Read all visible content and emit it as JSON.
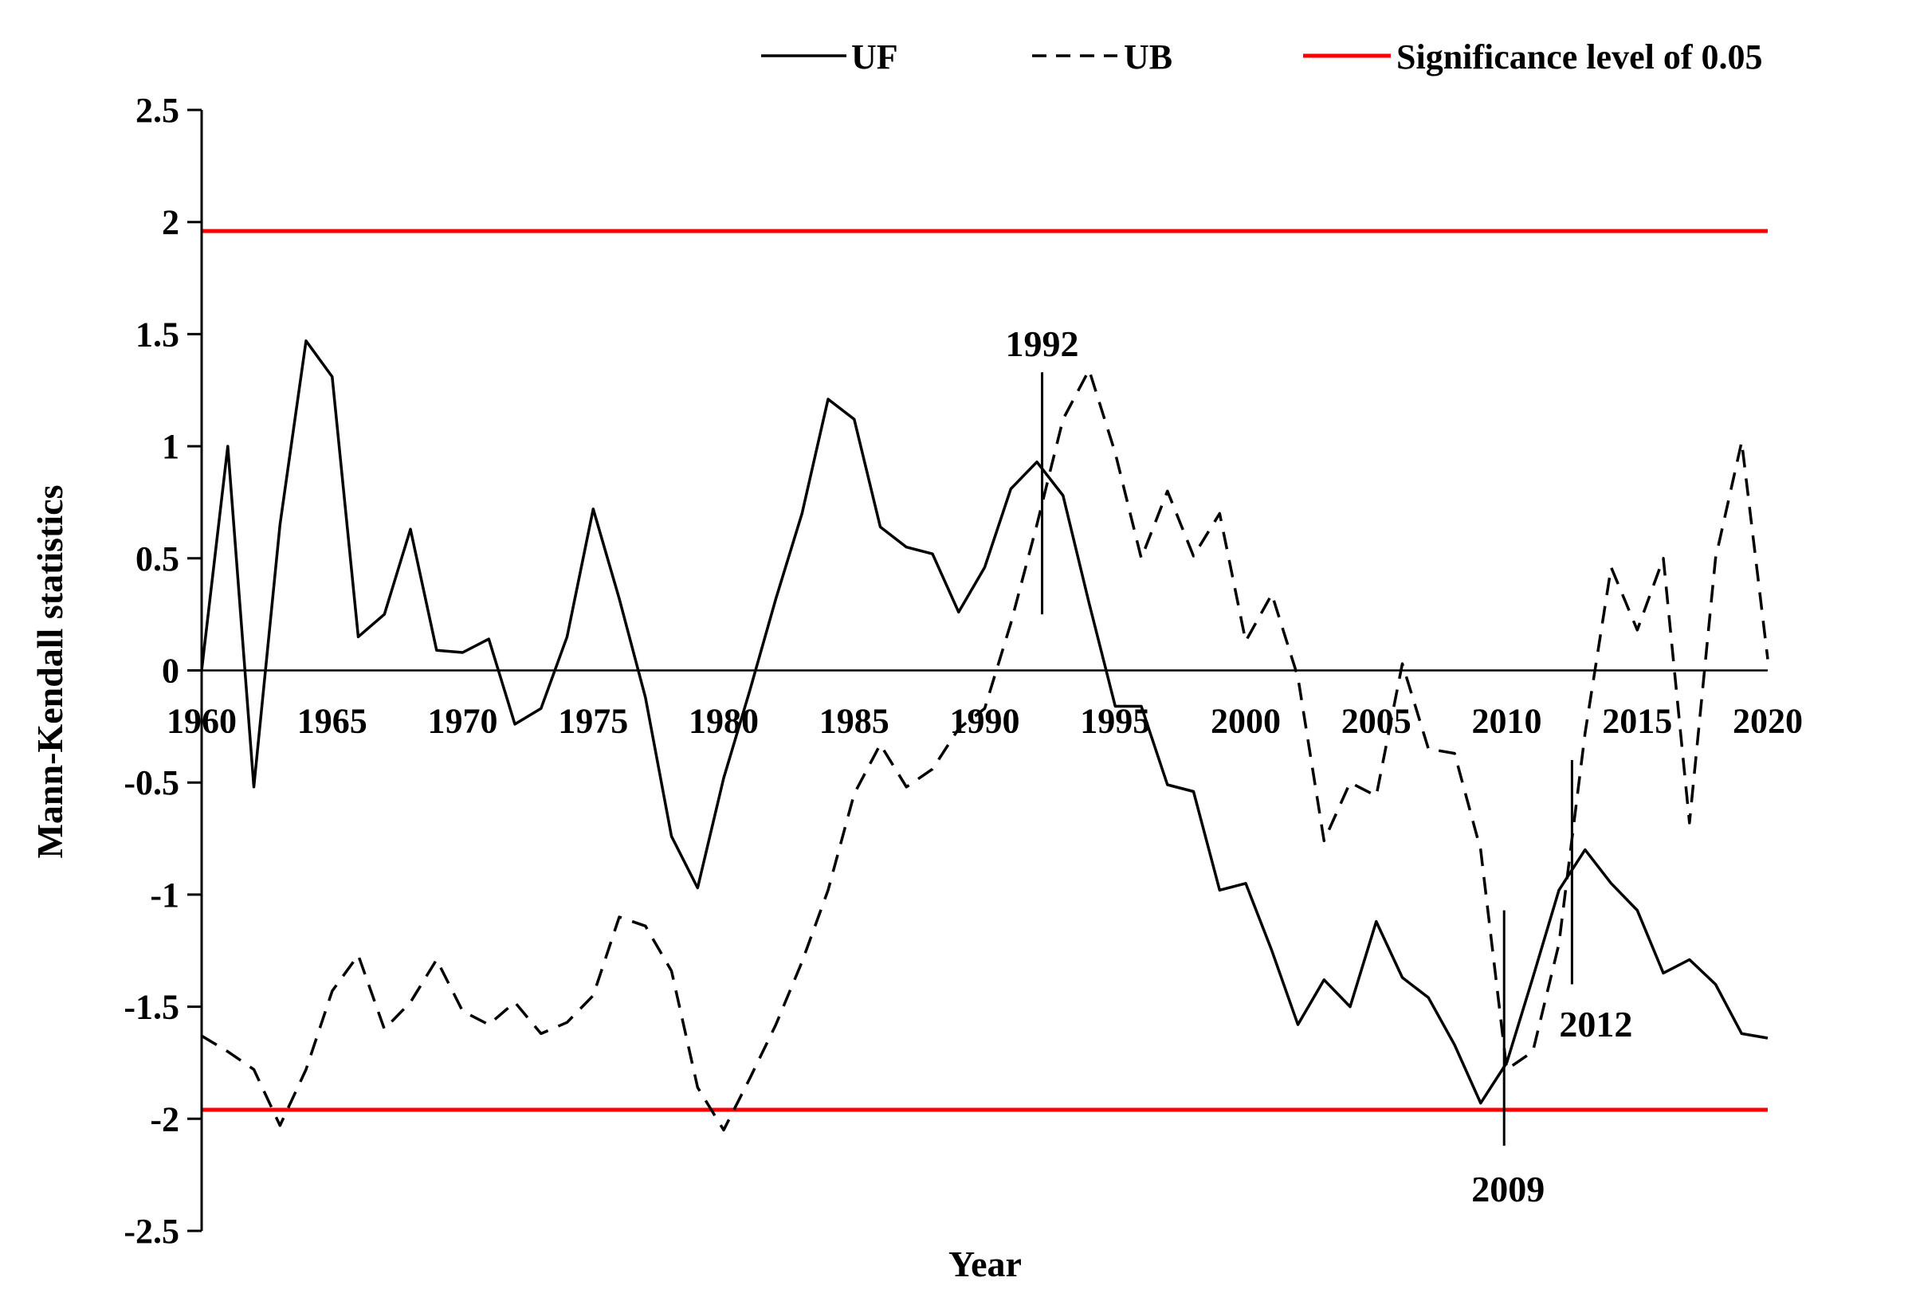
{
  "chart_data": {
    "type": "line",
    "title": "",
    "xlabel": "Year",
    "ylabel": "Mann-Kendall statistics",
    "xlim": [
      1960,
      2020
    ],
    "ylim": [
      -2.5,
      2.5
    ],
    "x_ticks": [
      "1960",
      "1965",
      "1970",
      "1975",
      "1980",
      "1985",
      "1990",
      "1995",
      "2000",
      "2005",
      "2010",
      "2015",
      "2020"
    ],
    "y_ticks": [
      "2.5",
      "2",
      "1.5",
      "1",
      "0.5",
      "0",
      "-0.5",
      "-1",
      "-1.5",
      "-2",
      "-2.5"
    ],
    "y_tick_values": [
      2.5,
      2,
      1.5,
      1,
      0.5,
      0,
      -0.5,
      -1,
      -1.5,
      -2,
      -2.5
    ],
    "x_tick_values": [
      1960,
      1965,
      1970,
      1975,
      1980,
      1985,
      1990,
      1995,
      2000,
      2005,
      2010,
      2015,
      2020
    ],
    "legend_position": "top",
    "legend": [
      {
        "name": "UF",
        "style": "solid",
        "color": "#000000"
      },
      {
        "name": "UB",
        "style": "dashed",
        "color": "#000000"
      },
      {
        "name": "Significance level  of 0.05",
        "style": "solid",
        "color": "#ff0000"
      }
    ],
    "x": [
      1960,
      1961,
      1962,
      1963,
      1964,
      1965,
      1966,
      1967,
      1968,
      1969,
      1970,
      1971,
      1972,
      1973,
      1974,
      1975,
      1976,
      1977,
      1978,
      1979,
      1980,
      1981,
      1982,
      1983,
      1984,
      1985,
      1986,
      1987,
      1988,
      1989,
      1990,
      1991,
      1992,
      1993,
      1994,
      1995,
      1996,
      1997,
      1998,
      1999,
      2000,
      2001,
      2002,
      2003,
      2004,
      2005,
      2006,
      2007,
      2008,
      2009,
      2010,
      2011,
      2012,
      2013,
      2014,
      2015,
      2016,
      2017,
      2018,
      2019,
      2020
    ],
    "series": [
      {
        "name": "UF",
        "style": "solid",
        "values": [
          0,
          1.0,
          -0.52,
          0.65,
          1.47,
          1.31,
          0.15,
          0.25,
          0.63,
          0.09,
          0.08,
          0.14,
          -0.24,
          -0.17,
          0.15,
          0.72,
          0.32,
          -0.12,
          -0.74,
          -0.97,
          -0.48,
          -0.09,
          0.32,
          0.7,
          1.21,
          1.12,
          0.64,
          0.55,
          0.52,
          0.26,
          0.46,
          0.81,
          0.93,
          0.78,
          0.3,
          -0.16,
          -0.16,
          -0.51,
          -0.54,
          -0.98,
          -0.95,
          -1.25,
          -1.58,
          -1.38,
          -1.5,
          -1.12,
          -1.37,
          -1.46,
          -1.67,
          -1.93,
          -1.75,
          -1.37,
          -0.98,
          -0.8,
          -0.95,
          -1.07,
          -1.35,
          -1.29,
          -1.4,
          -1.62,
          -1.64
        ]
      },
      {
        "name": "UB",
        "style": "dashed",
        "values": [
          -1.63,
          -1.7,
          -1.78,
          -2.03,
          -1.78,
          -1.43,
          -1.27,
          -1.6,
          -1.48,
          -1.29,
          -1.52,
          -1.58,
          -1.48,
          -1.62,
          -1.57,
          -1.45,
          -1.1,
          -1.14,
          -1.34,
          -1.86,
          -2.05,
          -1.82,
          -1.58,
          -1.3,
          -0.98,
          -0.55,
          -0.33,
          -0.52,
          -0.44,
          -0.26,
          -0.17,
          0.21,
          0.65,
          1.12,
          1.34,
          0.97,
          0.5,
          0.8,
          0.51,
          0.7,
          0.13,
          0.34,
          -0.03,
          -0.76,
          -0.5,
          -0.56,
          0.03,
          -0.35,
          -0.37,
          -0.8,
          -1.78,
          -1.7,
          -1.22,
          -0.28,
          0.46,
          0.18,
          0.5,
          -0.68,
          0.5,
          1.02,
          0.05
        ]
      },
      {
        "name": "Significance level  of 0.05",
        "style": "solid",
        "color": "#ff0000",
        "values_upper": 1.96,
        "values_lower": -1.96
      }
    ],
    "annotations": [
      {
        "text": "1992",
        "x": 1992.2,
        "y_from": 0.25,
        "y_to": 1.33,
        "label_side": "above"
      },
      {
        "text": "2009",
        "x": 2009.9,
        "y_from": -2.12,
        "y_to": -1.07,
        "label_side": "below"
      },
      {
        "text": "2012",
        "x": 2012.5,
        "y_from": -1.4,
        "y_to": -0.4,
        "label_side": "below"
      }
    ]
  }
}
